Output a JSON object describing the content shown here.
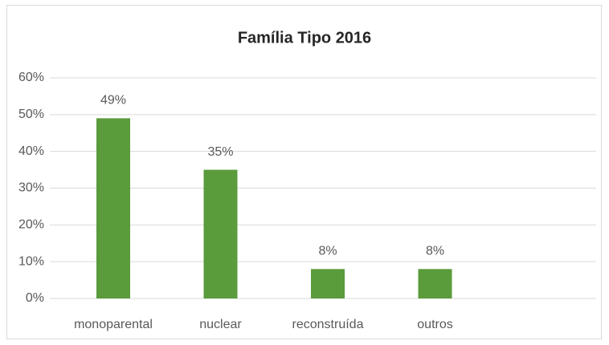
{
  "chart_data": {
    "type": "bar",
    "title": "Família Tipo 2016",
    "categories": [
      "monoparental",
      "nuclear",
      "reconstruída",
      "outros"
    ],
    "values": [
      49,
      35,
      8,
      8
    ],
    "value_labels": [
      "49%",
      "35%",
      "8%",
      "8%"
    ],
    "color": "#5a9b3b",
    "ylim": [
      0,
      60
    ],
    "yticks": [
      {
        "value": 0,
        "label": "0%"
      },
      {
        "value": 10,
        "label": "10%"
      },
      {
        "value": 20,
        "label": "20%"
      },
      {
        "value": 30,
        "label": "30%"
      },
      {
        "value": 40,
        "label": "40%"
      },
      {
        "value": 50,
        "label": "50%"
      },
      {
        "value": 60,
        "label": "60%"
      }
    ],
    "grid": true
  }
}
